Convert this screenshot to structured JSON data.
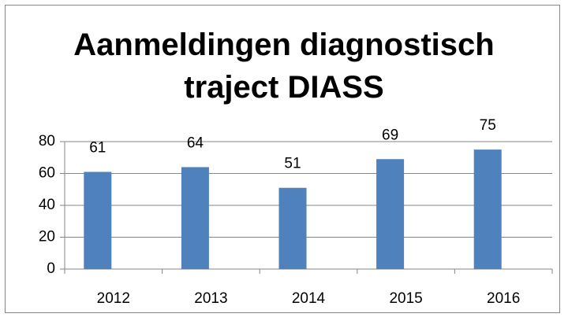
{
  "chart_data": {
    "type": "bar",
    "title": "Aanmeldingen diagnostisch traject DIASS",
    "categories": [
      "2012",
      "2013",
      "2014",
      "2015",
      "2016"
    ],
    "values": [
      61,
      64,
      51,
      69,
      75
    ],
    "color": "#4f81bd",
    "ylim": [
      0,
      80
    ],
    "yticks": [
      0,
      20,
      40,
      60,
      80
    ],
    "grid": true
  }
}
